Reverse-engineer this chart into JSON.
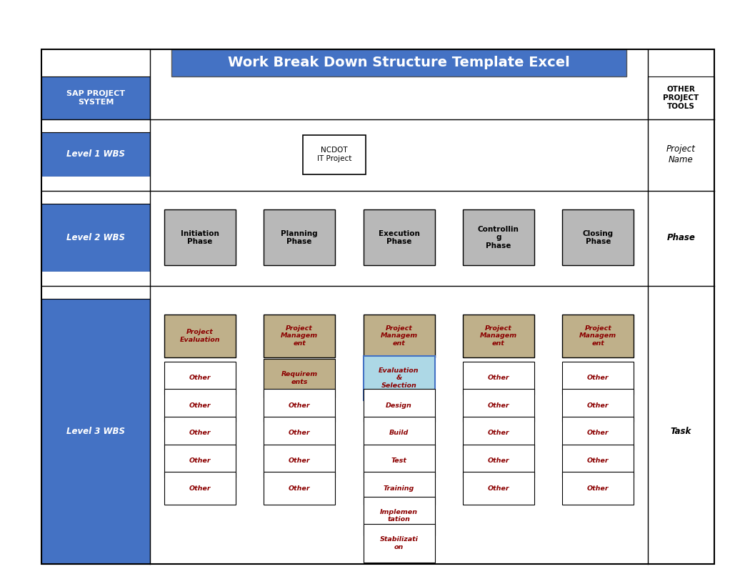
{
  "title": "Work Break Down Structure Template Excel",
  "title_bg": "#4472c4",
  "title_text_color": "#ffffff",
  "left_col_bg": "#4472c4",
  "left_col_text_color": "#ffffff",
  "level2_bg": "#b8b8b8",
  "level2_text_color": "#000000",
  "level1_box": "NCDOT\nIT Project",
  "level3_top_labels": [
    "Project\nEvaluation",
    "Project\nManagem\nent",
    "Project\nManagem\nent",
    "Project\nManagem\nent",
    "Project\nManagem\nent"
  ],
  "level3_top_bg": "#bfb08a",
  "level3_top_text_color": "#8b0000",
  "level3_col2_bg": "#bfb08a",
  "level3_col3_item1_bg": "#add8e6",
  "level3_other_bg": "#ffffff",
  "box_text_color": "#8b0000",
  "bg_color": "#ffffff",
  "level2_phases": [
    "Initiation\nPhase",
    "Planning\nPhase",
    "Execution\nPhase",
    "Controllin\ng\nPhase",
    "Closing\nPhase"
  ],
  "row_labels": [
    "SAP PROJECT\nSYSTEM",
    "Level 1 WBS",
    "Level 2 WBS",
    "Level 3 WBS"
  ],
  "right_col_labels": [
    "OTHER\nPROJECT\nTOOLS",
    "Project\nName",
    "Phase",
    "Task"
  ],
  "col_tasks": [
    [
      "Other",
      "Other",
      "Other",
      "Other",
      "Other"
    ],
    [
      "Requirem\nents",
      "Other",
      "Other",
      "Other",
      "Other"
    ],
    [
      "Evaluation\n&\nSelection",
      "Design",
      "Build",
      "Test",
      "Training",
      "Implemen\ntation",
      "Stabilizati\non"
    ],
    [
      "Other",
      "Other",
      "Other",
      "Other",
      "Other"
    ],
    [
      "Other",
      "Other",
      "Other",
      "Other",
      "Other"
    ]
  ]
}
